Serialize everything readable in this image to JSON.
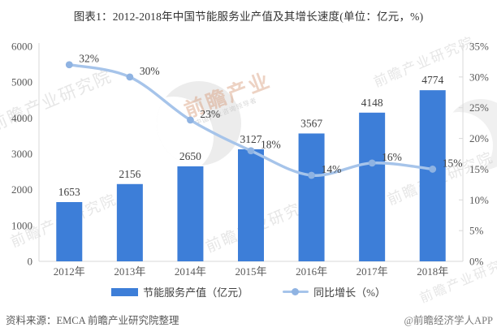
{
  "title": "图表1：2012-2018年中国节能服务业产值及其增长速度(单位：亿元，%)",
  "chart_data": {
    "type": "bar+line",
    "categories": [
      "2012年",
      "2013年",
      "2014年",
      "2015年",
      "2016年",
      "2017年",
      "2018年"
    ],
    "series": [
      {
        "name": "节能服务产值（亿元）",
        "type": "bar",
        "axis": "left",
        "values": [
          1653,
          2156,
          2650,
          3127,
          3567,
          4148,
          4774
        ],
        "value_labels": [
          "1653",
          "2156",
          "2650",
          "3127",
          "3567",
          "4148",
          "4774"
        ]
      },
      {
        "name": "同比增长（%）",
        "type": "line",
        "axis": "right",
        "values": [
          32,
          30,
          23,
          18,
          14,
          16,
          15
        ],
        "value_labels": [
          "32%",
          "30%",
          "23%",
          "18%",
          "14%",
          "16%",
          "15%"
        ]
      }
    ],
    "left_axis": {
      "min": 0,
      "max": 6000,
      "step": 1000,
      "tick_labels": [
        "0",
        "1000",
        "2000",
        "3000",
        "4000",
        "5000",
        "6000"
      ]
    },
    "right_axis": {
      "min": 0,
      "max": 35,
      "step": 5,
      "tick_labels": [
        "0%",
        "5%",
        "10%",
        "15%",
        "20%",
        "25%",
        "30%",
        "35%"
      ]
    },
    "grid": false,
    "legend_position": "bottom"
  },
  "legend": {
    "items": [
      {
        "label": "节能服务产值（亿元）",
        "swatch": "bar"
      },
      {
        "label": "同比增长（%）",
        "swatch": "line"
      }
    ]
  },
  "footer": {
    "source": "资料来源：EMCA 前瞻产业研究院整理",
    "credit": "@前瞻经济学人APP"
  },
  "watermark": {
    "text": "前瞻产业研究院",
    "brand": "前瞻产业",
    "brand_sub": "中国产业咨询领导者"
  },
  "colors": {
    "bar": "#3D7ED8",
    "line": "#A6C4EA",
    "marker": "#8FB3E2",
    "axis": "#D9D9D9",
    "tick_text": "#595959",
    "label_text": "#404040",
    "title_text": "#333333"
  }
}
